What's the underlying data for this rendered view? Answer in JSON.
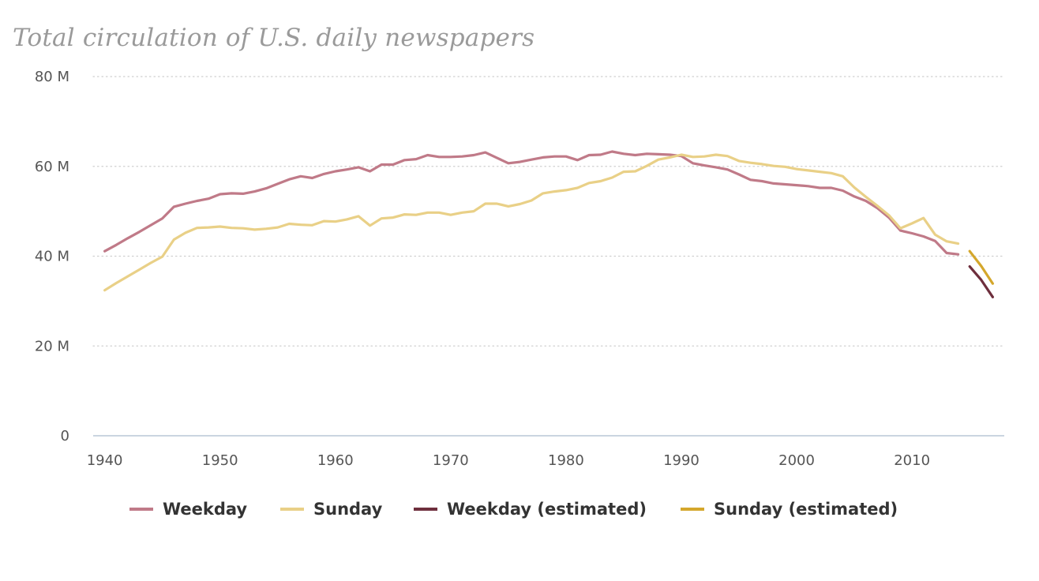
{
  "chart_data": {
    "type": "line",
    "title": "Total circulation of U.S. daily newspapers",
    "xlabel": "",
    "ylabel": "",
    "xlim": [
      1939,
      2018
    ],
    "ylim": [
      0,
      80
    ],
    "x_ticks": [
      1940,
      1950,
      1960,
      1970,
      1980,
      1990,
      2000,
      2010
    ],
    "y_ticks": [
      {
        "value": 0,
        "label": "0"
      },
      {
        "value": 20,
        "label": "20 M"
      },
      {
        "value": 40,
        "label": "40 M"
      },
      {
        "value": 60,
        "label": "60 M"
      },
      {
        "value": 80,
        "label": "80 M"
      }
    ],
    "grid": "horizontal dotted",
    "legend_position": "bottom",
    "series": [
      {
        "name": "Weekday",
        "color": "#c07a88",
        "x": [
          1940,
          1941,
          1942,
          1943,
          1944,
          1945,
          1946,
          1947,
          1948,
          1949,
          1950,
          1951,
          1952,
          1953,
          1954,
          1955,
          1956,
          1957,
          1958,
          1959,
          1960,
          1961,
          1962,
          1963,
          1964,
          1965,
          1966,
          1967,
          1968,
          1969,
          1970,
          1971,
          1972,
          1973,
          1974,
          1975,
          1976,
          1977,
          1978,
          1979,
          1980,
          1981,
          1982,
          1983,
          1984,
          1985,
          1986,
          1987,
          1988,
          1989,
          1990,
          1991,
          1992,
          1993,
          1994,
          1995,
          1996,
          1997,
          1998,
          1999,
          2000,
          2001,
          2002,
          2003,
          2004,
          2005,
          2006,
          2007,
          2008,
          2009,
          2010,
          2011,
          2012,
          2013,
          2014
        ],
        "values": [
          41.1,
          42.5,
          44.0,
          45.4,
          46.9,
          48.4,
          51.0,
          51.7,
          52.3,
          52.8,
          53.8,
          54.0,
          53.9,
          54.4,
          55.1,
          56.1,
          57.1,
          57.8,
          57.4,
          58.3,
          58.9,
          59.3,
          59.8,
          58.9,
          60.4,
          60.4,
          61.4,
          61.6,
          62.5,
          62.1,
          62.1,
          62.2,
          62.5,
          63.1,
          61.9,
          60.7,
          61.0,
          61.5,
          62.0,
          62.2,
          62.2,
          61.4,
          62.5,
          62.6,
          63.3,
          62.8,
          62.5,
          62.8,
          62.7,
          62.6,
          62.3,
          60.7,
          60.2,
          59.8,
          59.3,
          58.2,
          57.0,
          56.7,
          56.2,
          56.0,
          55.8,
          55.6,
          55.2,
          55.2,
          54.6,
          53.3,
          52.3,
          50.7,
          48.6,
          45.7,
          45.1,
          44.4,
          43.4,
          40.7,
          40.4
        ]
      },
      {
        "name": "Sunday",
        "color": "#e9d087",
        "x": [
          1940,
          1941,
          1942,
          1943,
          1944,
          1945,
          1946,
          1947,
          1948,
          1949,
          1950,
          1951,
          1952,
          1953,
          1954,
          1955,
          1956,
          1957,
          1958,
          1959,
          1960,
          1961,
          1962,
          1963,
          1964,
          1965,
          1966,
          1967,
          1968,
          1969,
          1970,
          1971,
          1972,
          1973,
          1974,
          1975,
          1976,
          1977,
          1978,
          1979,
          1980,
          1981,
          1982,
          1983,
          1984,
          1985,
          1986,
          1987,
          1988,
          1989,
          1990,
          1991,
          1992,
          1993,
          1994,
          1995,
          1996,
          1997,
          1998,
          1999,
          2000,
          2001,
          2002,
          2003,
          2004,
          2005,
          2006,
          2007,
          2008,
          2009,
          2010,
          2011,
          2012,
          2013,
          2014
        ],
        "values": [
          32.4,
          34.0,
          35.5,
          37.0,
          38.5,
          39.9,
          43.7,
          45.2,
          46.3,
          46.4,
          46.6,
          46.3,
          46.2,
          45.9,
          46.1,
          46.4,
          47.2,
          47.0,
          46.9,
          47.8,
          47.7,
          48.2,
          48.9,
          46.8,
          48.4,
          48.6,
          49.3,
          49.2,
          49.7,
          49.7,
          49.2,
          49.7,
          50.0,
          51.7,
          51.7,
          51.1,
          51.6,
          52.4,
          54.0,
          54.4,
          54.7,
          55.2,
          56.3,
          56.7,
          57.5,
          58.8,
          58.9,
          60.1,
          61.5,
          62.0,
          62.6,
          62.1,
          62.2,
          62.6,
          62.3,
          61.2,
          60.8,
          60.5,
          60.1,
          59.9,
          59.4,
          59.1,
          58.8,
          58.5,
          57.8,
          55.3,
          53.2,
          51.2,
          49.1,
          46.2,
          47.3,
          48.5,
          44.8,
          43.3,
          42.8
        ]
      },
      {
        "name": "Weekday (estimated)",
        "color": "#6e2f3d",
        "x": [
          2015,
          2016,
          2017
        ],
        "values": [
          37.7,
          34.7,
          30.9
        ]
      },
      {
        "name": "Sunday (estimated)",
        "color": "#d4a72c",
        "x": [
          2015,
          2016,
          2017
        ],
        "values": [
          41.1,
          37.8,
          33.9
        ]
      }
    ]
  }
}
